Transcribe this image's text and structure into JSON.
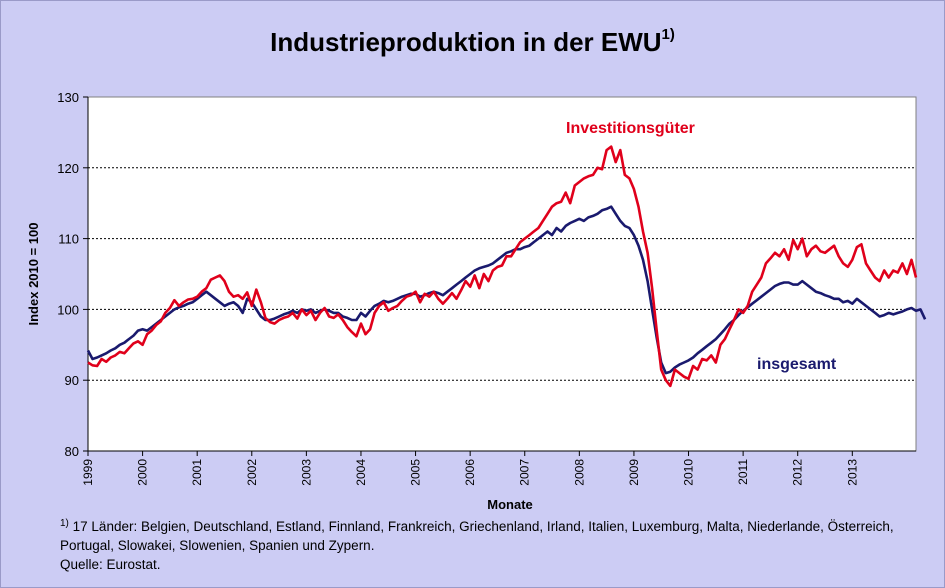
{
  "chart_data": {
    "type": "line",
    "title": "Industrieproduktion in der EWU",
    "title_superscript": "1)",
    "xlabel": "Monate",
    "ylabel": "Index 2010 = 100",
    "ylim": [
      80,
      130
    ],
    "yticks": [
      80,
      90,
      100,
      110,
      120,
      130
    ],
    "x_tick_labels": [
      "1999",
      "2000",
      "2001",
      "2002",
      "2003",
      "2004",
      "2005",
      "2006",
      "2007",
      "2008",
      "2009",
      "2010",
      "2011",
      "2012",
      "2013"
    ],
    "grid": "horizontal dotted",
    "x_start": "1999-01",
    "frequency": "monthly",
    "series": [
      {
        "name": "Investitionsgüter",
        "color": "#e0001b",
        "values": [
          92.5,
          92.1,
          92.0,
          93.0,
          92.6,
          93.2,
          93.5,
          94.0,
          93.8,
          94.5,
          95.2,
          95.5,
          95.0,
          96.5,
          97.0,
          97.8,
          98.3,
          99.5,
          100.2,
          101.3,
          100.5,
          101.0,
          101.4,
          101.5,
          101.8,
          102.5,
          103.0,
          104.2,
          104.5,
          104.8,
          104.0,
          102.5,
          101.8,
          102.0,
          101.5,
          102.4,
          100.5,
          102.8,
          101.0,
          98.8,
          98.2,
          98.0,
          98.5,
          98.8,
          99.0,
          99.5,
          98.7,
          100.0,
          99.2,
          99.8,
          98.5,
          99.5,
          100.2,
          99.0,
          98.8,
          99.3,
          98.5,
          97.5,
          96.8,
          96.2,
          98.0,
          96.5,
          97.2,
          99.5,
          100.5,
          101.0,
          99.8,
          100.2,
          100.5,
          101.2,
          101.8,
          102.0,
          102.5,
          101.0,
          102.2,
          101.8,
          102.5,
          101.5,
          100.8,
          101.5,
          102.3,
          101.5,
          102.7,
          104.0,
          103.2,
          104.8,
          103.0,
          105.0,
          104.0,
          105.5,
          106.0,
          106.2,
          107.5,
          107.5,
          108.5,
          109.5,
          110.0,
          110.5,
          111.0,
          111.5,
          112.5,
          113.5,
          114.5,
          115.0,
          115.2,
          116.5,
          115.0,
          117.5,
          118.0,
          118.5,
          118.8,
          119.0,
          120.0,
          119.8,
          122.5,
          123.0,
          120.8,
          122.5,
          119.0,
          118.5,
          117.0,
          114.5,
          111.0,
          108.0,
          103.0,
          97.0,
          91.5,
          90.0,
          89.2,
          91.5,
          91.0,
          90.5,
          90.2,
          92.0,
          91.5,
          93.0,
          92.8,
          93.5,
          92.5,
          95.0,
          95.8,
          97.2,
          98.5,
          100.0,
          99.5,
          100.5,
          102.5,
          103.5,
          104.5,
          106.5,
          107.2,
          108.0,
          107.5,
          108.5,
          107.0,
          109.8,
          108.5,
          110.0,
          107.5,
          108.5,
          109.0,
          108.2,
          108.0,
          108.5,
          109.0,
          107.5,
          106.5,
          106.0,
          107.0,
          108.8,
          109.2,
          106.5,
          105.5,
          104.5,
          104.0,
          105.5,
          104.5,
          105.5,
          105.2,
          106.5,
          105.0,
          107.0,
          104.5
        ]
      },
      {
        "name": "insgesamt",
        "color": "#1a1a6e",
        "values": [
          94.2,
          93.0,
          93.2,
          93.5,
          93.8,
          94.2,
          94.5,
          95.0,
          95.3,
          95.8,
          96.3,
          97.0,
          97.2,
          97.0,
          97.5,
          98.0,
          98.5,
          99.0,
          99.5,
          100.0,
          100.3,
          100.5,
          100.8,
          101.0,
          101.5,
          102.0,
          102.5,
          102.0,
          101.5,
          101.0,
          100.5,
          100.8,
          101.0,
          100.5,
          99.5,
          101.5,
          101.0,
          100.0,
          99.0,
          98.5,
          98.5,
          98.7,
          99.0,
          99.3,
          99.5,
          99.8,
          99.5,
          100.0,
          99.8,
          100.0,
          99.5,
          99.8,
          100.0,
          99.8,
          99.5,
          99.5,
          99.0,
          98.8,
          98.5,
          98.5,
          99.5,
          99.0,
          99.8,
          100.5,
          100.8,
          101.2,
          101.0,
          101.2,
          101.5,
          101.8,
          102.0,
          102.2,
          102.2,
          101.8,
          102.0,
          102.3,
          102.5,
          102.3,
          102.0,
          102.5,
          103.0,
          103.5,
          104.0,
          104.5,
          105.0,
          105.5,
          105.8,
          106.0,
          106.2,
          106.5,
          107.0,
          107.5,
          108.0,
          108.2,
          108.5,
          108.5,
          108.8,
          109.0,
          109.5,
          110.0,
          110.5,
          111.0,
          110.5,
          111.5,
          111.0,
          111.8,
          112.2,
          112.5,
          112.8,
          112.5,
          113.0,
          113.2,
          113.5,
          114.0,
          114.2,
          114.5,
          113.5,
          112.5,
          111.8,
          111.5,
          110.5,
          109.0,
          107.0,
          104.0,
          100.0,
          96.0,
          92.5,
          91.0,
          91.2,
          91.8,
          92.2,
          92.5,
          92.8,
          93.2,
          93.8,
          94.3,
          94.8,
          95.3,
          95.8,
          96.5,
          97.2,
          98.0,
          98.5,
          99.2,
          99.8,
          100.3,
          100.8,
          101.3,
          101.8,
          102.3,
          102.8,
          103.3,
          103.6,
          103.8,
          103.8,
          103.5,
          103.5,
          104.0,
          103.5,
          103.0,
          102.5,
          102.3,
          102.0,
          101.8,
          101.5,
          101.5,
          101.0,
          101.2,
          100.8,
          101.5,
          101.0,
          100.5,
          100.0,
          99.5,
          99.0,
          99.2,
          99.5,
          99.3,
          99.5,
          99.7,
          100.0,
          100.2,
          99.8,
          100.0,
          98.6
        ]
      }
    ],
    "annotations": [
      {
        "text": "Investitionsgüter",
        "color": "#e0001b"
      },
      {
        "text": "insgesamt",
        "color": "#1a1a6e"
      }
    ]
  },
  "footnote": {
    "marker": "1)",
    "line1": " 17 Länder: Belgien, Deutschland, Estland, Finnland, Frankreich, Griechenland, Irland, Italien, Luxemburg, Malta, Niederlande, Österreich,",
    "line2": "Portugal, Slowakei, Slowenien, Spanien und Zypern.",
    "source": "Quelle: Eurostat."
  }
}
